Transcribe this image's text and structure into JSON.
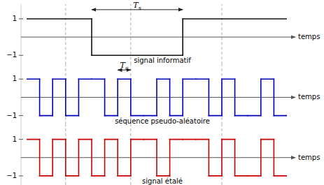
{
  "chart_data": [
    {
      "type": "step",
      "title": "signal informatif",
      "x_label": "temps",
      "x": [
        0,
        2.5,
        6.0
      ],
      "values": [
        1,
        -1,
        1
      ],
      "color": "#111111",
      "xlim": [
        0.0,
        10.0
      ],
      "ylim": [
        -1.5,
        1.8
      ],
      "yticks": [
        {
          "value": -1,
          "label": "−1"
        },
        1
      ],
      "reference_lines": [
        1.5,
        4.0,
        7.5
      ],
      "annotations": [
        {
          "text": "Ts",
          "x": [
            2.5,
            6.0
          ],
          "y": 1.5
        }
      ]
    },
    {
      "type": "step",
      "title": "séquence pseudo-aléatoire",
      "x_label": "temps",
      "x": [
        0,
        0.5,
        1.0,
        1.5,
        2.0,
        2.5,
        3.0,
        3.5,
        4.0,
        4.5,
        5.0,
        5.5,
        6.0,
        6.5,
        7.0,
        7.5,
        8.0,
        8.5,
        9.0,
        9.5
      ],
      "values": [
        1,
        -1,
        1,
        -1,
        1,
        1,
        -1,
        1,
        -1,
        -1,
        1,
        -1,
        1,
        1,
        -1,
        1,
        -1,
        -1,
        1,
        -1
      ],
      "color": "#0000bb",
      "xlim": [
        0.0,
        10.0
      ],
      "ylim": [
        -1.5,
        1.8
      ],
      "yticks": [
        {
          "value": -1,
          "label": "−1"
        },
        1
      ],
      "reference_lines": [
        1.5,
        4.0,
        7.5
      ],
      "annotations": [
        {
          "text": "Tc",
          "x": [
            3.5,
            4.0
          ],
          "y": 1.5
        }
      ]
    },
    {
      "type": "step",
      "title": "signal étalé",
      "x_label": "temps",
      "x": [
        0,
        0.5,
        1.0,
        1.5,
        2.0,
        2.5,
        3.0,
        3.5,
        4.0,
        4.5,
        5.0,
        5.5,
        6.0,
        6.5,
        7.0,
        7.5,
        8.0,
        8.5,
        9.0,
        9.5
      ],
      "values": [
        1,
        -1,
        1,
        -1,
        1,
        -1,
        1,
        -1,
        1,
        1,
        -1,
        1,
        1,
        1,
        -1,
        1,
        -1,
        -1,
        1,
        -1
      ],
      "color": "#cc0000",
      "xlim": [
        0.0,
        10.0
      ],
      "ylim": [
        -1.5,
        1.8
      ],
      "yticks": [
        {
          "value": -1,
          "label": "−1"
        },
        1
      ],
      "reference_lines": [
        1.5,
        4.0,
        7.5
      ],
      "annotations": []
    }
  ]
}
